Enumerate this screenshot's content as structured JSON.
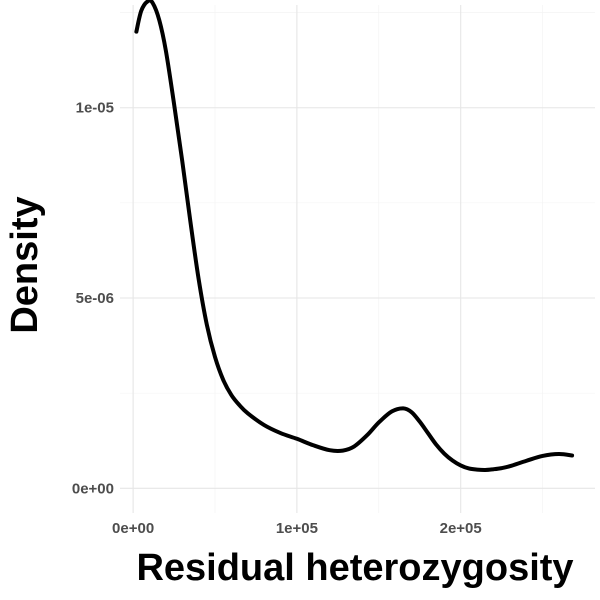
{
  "chart_data": {
    "type": "line",
    "title": "",
    "xlabel": "Residual heterozygosity",
    "ylabel": "Density",
    "xlim": [
      -8000,
      282000
    ],
    "ylim": [
      -6.5e-07,
      1.27e-05
    ],
    "grid": true,
    "legend": "none",
    "x_ticks": [
      {
        "value": 0,
        "label": "0e+00"
      },
      {
        "value": 100000,
        "label": "1e+05"
      },
      {
        "value": 200000,
        "label": "2e+05"
      }
    ],
    "y_ticks": [
      {
        "value": 0,
        "label": "0e+00"
      },
      {
        "value": 5e-06,
        "label": "5e-06"
      },
      {
        "value": 1e-05,
        "label": "1e-05"
      }
    ],
    "series": [
      {
        "color": "#000000",
        "x": [
          2000,
          5000,
          9000,
          12000,
          16000,
          20000,
          25000,
          30000,
          35000,
          40000,
          45000,
          50000,
          55000,
          60000,
          65000,
          70000,
          80000,
          90000,
          100000,
          110000,
          120000,
          128000,
          135000,
          143000,
          150000,
          158000,
          165000,
          170000,
          175000,
          180000,
          185000,
          190000,
          195000,
          200000,
          205000,
          210000,
          215000,
          220000,
          225000,
          230000,
          240000,
          250000,
          260000,
          268000
        ],
        "y": [
          1.2e-05,
          1.255e-05,
          1.28e-05,
          1.275e-05,
          1.23e-05,
          1.15e-05,
          1.01e-05,
          8.6e-06,
          7e-06,
          5.5e-06,
          4.3e-06,
          3.45e-06,
          2.85e-06,
          2.45e-06,
          2.18e-06,
          1.97e-06,
          1.66e-06,
          1.45e-06,
          1.3e-06,
          1.13e-06,
          1e-06,
          9.9e-07,
          1.1e-06,
          1.4e-06,
          1.73e-06,
          2.02e-06,
          2.1e-06,
          2e-06,
          1.75e-06,
          1.45e-06,
          1.15e-06,
          9.1e-07,
          7.3e-07,
          6e-07,
          5.2e-07,
          4.9e-07,
          4.8e-07,
          5e-07,
          5.3e-07,
          5.8e-07,
          7.2e-07,
          8.5e-07,
          9e-07,
          8.6e-07
        ]
      }
    ]
  }
}
